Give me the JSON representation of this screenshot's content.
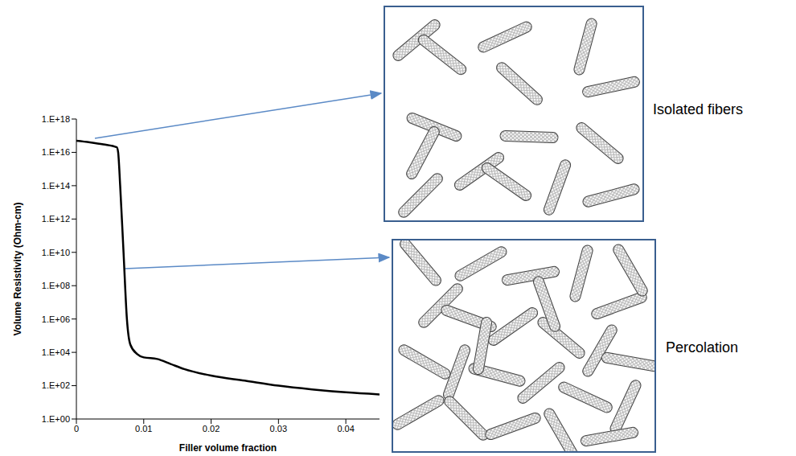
{
  "chart_data": {
    "type": "line",
    "x_label": "Filler volume fraction",
    "y_label": "Volume Resistivity (Ohm-cm)",
    "x": [
      0,
      0.002,
      0.004,
      0.006,
      0.0062,
      0.0065,
      0.007,
      0.0075,
      0.008,
      0.009,
      0.01,
      0.012,
      0.014,
      0.016,
      0.02,
      0.025,
      0.03,
      0.035,
      0.04,
      0.045
    ],
    "values": [
      5e+16,
      4e+16,
      3e+16,
      2e+16,
      1e+16,
      100000000000000.0,
      10000000000.0,
      1000000.0,
      30000.0,
      8000.0,
      5000.0,
      4000.0,
      2000.0,
      1000.0,
      400.0,
      200.0,
      100.0,
      60.0,
      40.0,
      30.0
    ],
    "color": "#000000",
    "log": "y",
    "grid": false,
    "xlim": [
      0,
      0.045
    ],
    "xticks": [
      0,
      0.01,
      0.02,
      0.03,
      0.04
    ],
    "ylim": [
      1,
      1e+18
    ],
    "yticks": [
      {
        "value": 1,
        "label": "1.E+00"
      },
      {
        "value": 100,
        "label": "1.E+02"
      },
      {
        "value": 10000,
        "label": "1.E+04"
      },
      {
        "value": 1000000,
        "label": "1.E+06"
      },
      {
        "value": 100000000,
        "label": "1.E+08"
      },
      {
        "value": 10000000000,
        "label": "1.E+10"
      },
      {
        "value": 1000000000000,
        "label": "1.E+12"
      },
      {
        "value": 100000000000000,
        "label": "1.E+14"
      },
      {
        "value": 10000000000000000,
        "label": "1.E+16"
      },
      {
        "value": 1000000000000000000,
        "label": "1.E+18"
      }
    ],
    "annotations": [
      "Isolated fibers",
      "Percolation"
    ]
  }
}
